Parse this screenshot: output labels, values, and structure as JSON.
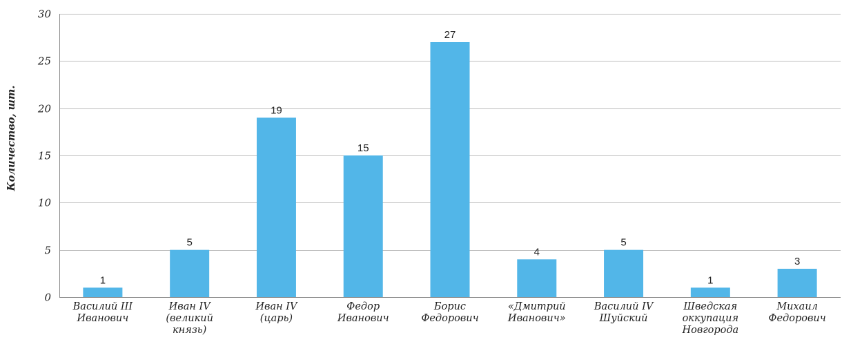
{
  "chart_data": {
    "type": "bar",
    "title": "",
    "xlabel": "",
    "ylabel": "Количество, шт.",
    "ylim": [
      0,
      30
    ],
    "yticks": [
      0,
      5,
      10,
      15,
      20,
      25,
      30
    ],
    "grid": true,
    "legend": "none",
    "bar_color": "#52b6e8",
    "categories": [
      [
        "Василий III",
        "Иванович"
      ],
      [
        "Иван IV",
        "(великий",
        "князь)"
      ],
      [
        "Иван IV",
        "(царь)"
      ],
      [
        "Федор",
        "Иванович"
      ],
      [
        "Борис",
        "Федорович"
      ],
      [
        "«Дмитрий",
        "Иванович»"
      ],
      [
        "Василий IV",
        "Шуйский"
      ],
      [
        "Шведская",
        "оккупация",
        "Новгорода"
      ],
      [
        "Михаил",
        "Федорович"
      ]
    ],
    "values": [
      1,
      5,
      19,
      15,
      27,
      4,
      5,
      1,
      3
    ],
    "data_labels": [
      "1",
      "5",
      "19",
      "15",
      "27",
      "4",
      "5",
      "1",
      "3"
    ]
  }
}
